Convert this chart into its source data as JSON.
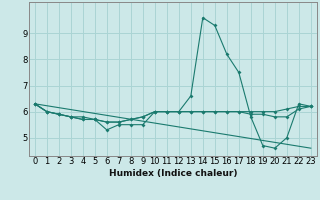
{
  "xlabel": "Humidex (Indice chaleur)",
  "ylabel": "",
  "background_color": "#cce8e8",
  "grid_color": "#aad4d4",
  "line_color": "#1a7a6e",
  "x_values": [
    0,
    1,
    2,
    3,
    4,
    5,
    6,
    7,
    8,
    9,
    10,
    11,
    12,
    13,
    14,
    15,
    16,
    17,
    18,
    19,
    20,
    21,
    22,
    23
  ],
  "series_main": [
    6.3,
    6.0,
    5.9,
    5.8,
    5.7,
    5.7,
    5.3,
    5.5,
    5.5,
    5.5,
    6.0,
    6.0,
    6.0,
    6.6,
    9.6,
    9.3,
    8.2,
    7.5,
    5.8,
    4.7,
    4.6,
    5.0,
    6.3,
    6.2
  ],
  "series_flat1": [
    6.3,
    6.0,
    5.9,
    5.8,
    5.7,
    5.7,
    5.6,
    5.6,
    5.7,
    5.8,
    6.0,
    6.0,
    6.0,
    6.0,
    6.0,
    6.0,
    6.0,
    6.0,
    6.0,
    6.0,
    6.0,
    6.1,
    6.2,
    6.2
  ],
  "series_flat2": [
    6.3,
    6.0,
    5.9,
    5.8,
    5.8,
    5.7,
    5.6,
    5.6,
    5.7,
    5.8,
    6.0,
    6.0,
    6.0,
    6.0,
    6.0,
    6.0,
    6.0,
    6.0,
    5.9,
    5.9,
    5.8,
    5.8,
    6.1,
    6.2
  ],
  "trend_x": [
    0,
    23
  ],
  "trend_y": [
    6.3,
    4.6
  ],
  "ylim": [
    4.3,
    10.2
  ],
  "xlim": [
    -0.5,
    23.5
  ],
  "yticks": [
    5,
    6,
    7,
    8,
    9
  ],
  "xtick_labels": [
    "0",
    "1",
    "2",
    "3",
    "4",
    "5",
    "6",
    "7",
    "8",
    "9",
    "10",
    "11",
    "12",
    "13",
    "14",
    "15",
    "16",
    "17",
    "18",
    "19",
    "20",
    "21",
    "22",
    "23"
  ]
}
